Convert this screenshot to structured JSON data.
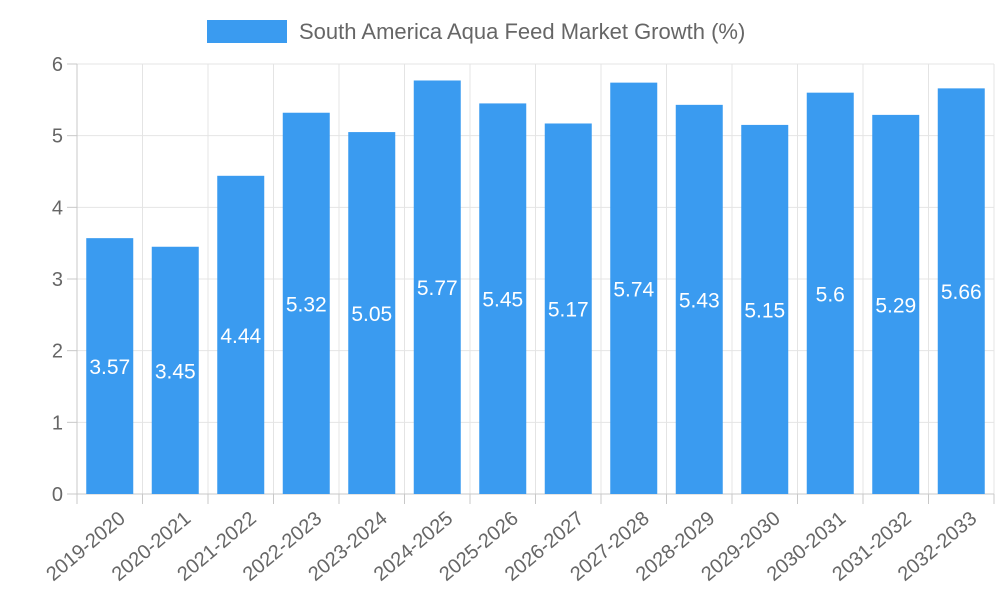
{
  "chart_data": {
    "type": "bar",
    "title": "",
    "xlabel": "",
    "ylabel": "",
    "legend_position": "top-center",
    "grid": true,
    "ylim": [
      0,
      6
    ],
    "y_ticks": [
      0,
      1,
      2,
      3,
      4,
      5,
      6
    ],
    "categories": [
      "2019-2020",
      "2020-2021",
      "2021-2022",
      "2022-2023",
      "2023-2024",
      "2024-2025",
      "2025-2026",
      "2026-2027",
      "2027-2028",
      "2028-2029",
      "2029-2030",
      "2030-2031",
      "2031-2032",
      "2032-2033"
    ],
    "series": [
      {
        "name": "South America Aqua Feed Market Growth (%)",
        "color": "#3a9bf0",
        "values": [
          3.57,
          3.45,
          4.44,
          5.32,
          5.05,
          5.77,
          5.45,
          5.17,
          5.74,
          5.43,
          5.15,
          5.6,
          5.29,
          5.66
        ],
        "labels": [
          "3.57",
          "3.45",
          "4.44",
          "5.32",
          "5.05",
          "5.77",
          "5.45",
          "5.17",
          "5.74",
          "5.43",
          "5.15",
          "5.6",
          "5.29",
          "5.66"
        ]
      }
    ]
  }
}
